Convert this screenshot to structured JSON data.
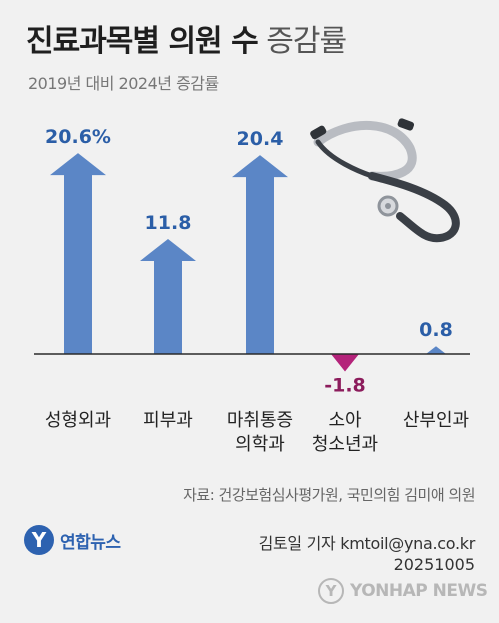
{
  "title_bold": "진료과목별 의원 수",
  "title_light": "증감률",
  "subtitle": "2019년 대비 2024년 증감률",
  "source": "자료: 건강보험심사평가원, 국민의힘 김미애 의원",
  "logo_text": "연합뉴스",
  "credit": "김토일 기자 kmtoil@yna.co.kr",
  "date": "20251005",
  "watermark": "YONHAP NEWS",
  "colors": {
    "positive": "#5b86c6",
    "negative": "#b4237a",
    "value_positive": "#2b5ea7",
    "value_negative": "#8c1c5c",
    "baseline": "#2a2a2a"
  },
  "decor": {
    "illustration": "stethoscope-icon"
  },
  "chart_data": {
    "type": "bar",
    "unit": "%",
    "categories": [
      [
        "성형외과"
      ],
      [
        "피부과"
      ],
      [
        "마취통증",
        "의학과"
      ],
      [
        "소아",
        "청소년과"
      ],
      [
        "산부인과"
      ]
    ],
    "values": [
      20.6,
      11.8,
      20.4,
      -1.8,
      0.8
    ],
    "value_labels": [
      "20.6%",
      "11.8",
      "20.4",
      "-1.8",
      "0.8"
    ]
  }
}
